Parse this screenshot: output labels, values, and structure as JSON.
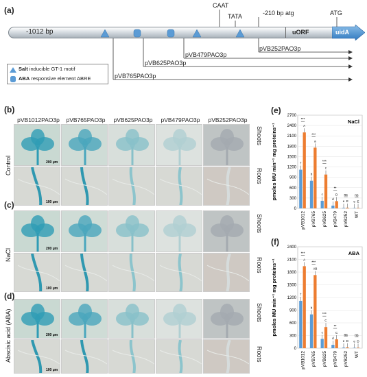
{
  "panels": {
    "a": "(a)",
    "b": "(b)",
    "c": "(c)",
    "d": "(d)",
    "e": "(e)",
    "f": "(f)"
  },
  "promoter": {
    "start_label": "-1012 bp",
    "caat": "CAAT",
    "tata": "TATA",
    "atg_upstream": "-210 bp atg",
    "atg": "ATG",
    "uorf": "uORF",
    "gene": "uidA",
    "constructs": [
      "pVB252PAO3p",
      "pVB479PAO3p",
      "pVB625PAO3p",
      "pVB765PAO3p"
    ]
  },
  "legend": {
    "salt_bold": "Salt",
    "salt_rest": " inducible GT-1 motif",
    "aba_bold": "ABA",
    "aba_rest": " responsive element ABRE"
  },
  "grid": {
    "columns": [
      "pVB1012PAO3p",
      "pVB765PAO3p",
      "pVB625PAO3p",
      "pVB479PAO3p",
      "pVB252PAO3p"
    ],
    "conditions": [
      "Control",
      "NaCl",
      "Abscisic acid (ABA)"
    ],
    "tissues": [
      "Shoots",
      "Roots"
    ],
    "scale_shoot": "200 μm",
    "scale_root": "100 μm"
  },
  "chart_data": [
    {
      "type": "bar",
      "title": "NaCl",
      "ylabel": "pmoles MU min⁻¹ mg proteins⁻¹",
      "ylim": [
        0,
        2700
      ],
      "yticks": [
        0,
        300,
        600,
        900,
        1200,
        1500,
        1800,
        2100,
        2400,
        2700
      ],
      "categories": [
        "pVB1012",
        "pVB765",
        "pVB625",
        "pVB479",
        "pVB252",
        "WT"
      ],
      "series": [
        {
          "color": "#5b9bd5",
          "values": [
            1120,
            800,
            220,
            80,
            15,
            10
          ],
          "letters": [
            "†",
            "b",
            "c",
            "d",
            "e",
            "e"
          ]
        },
        {
          "color": "#ed7d31",
          "values": [
            2200,
            1760,
            980,
            210,
            20,
            12
          ],
          "letters": [
            "A",
            "a",
            "c",
            "D",
            "E",
            "E"
          ]
        }
      ],
      "significance": [
        "***",
        "***",
        "***",
        "**",
        "ns",
        "ns"
      ]
    },
    {
      "type": "bar",
      "title": "ABA",
      "ylabel": "pmoles MU min⁻¹ mg proteins⁻¹",
      "ylim": [
        0,
        2400
      ],
      "yticks": [
        0,
        300,
        600,
        900,
        1200,
        1500,
        1800,
        2100,
        2400
      ],
      "categories": [
        "pVB1012",
        "pVB765",
        "pVB625",
        "pVB479",
        "pVB252",
        "WT"
      ],
      "series": [
        {
          "color": "#5b9bd5",
          "values": [
            1120,
            800,
            220,
            80,
            15,
            10
          ],
          "letters": [
            "†",
            "b",
            "c",
            "d",
            "e",
            "e"
          ]
        },
        {
          "color": "#ed7d31",
          "values": [
            1940,
            1730,
            500,
            210,
            20,
            12
          ],
          "letters": [
            "A",
            "AB",
            "C",
            "C",
            "D",
            "D"
          ]
        }
      ],
      "significance": [
        "***",
        "***",
        "***",
        "**",
        "ns",
        "ns"
      ]
    }
  ]
}
